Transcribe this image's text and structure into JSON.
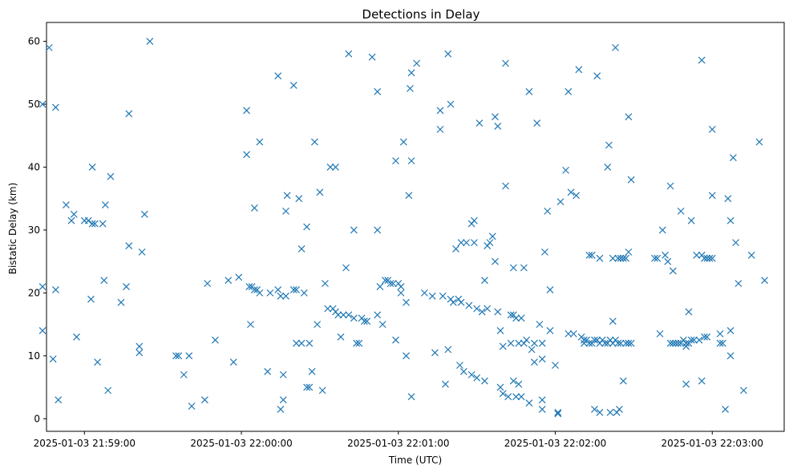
{
  "chart_data": {
    "type": "scatter",
    "title": "Detections in Delay",
    "xlabel": "Time (UTC)",
    "ylabel": "Bistatic Delay (km)",
    "x_format": "seconds after 2025-01-03 21:58:00",
    "xlim": [
      45.5,
      327.5
    ],
    "ylim": [
      -2,
      63
    ],
    "x_ticks": [
      {
        "value": 60,
        "label": "2025-01-03 21:59:00"
      },
      {
        "value": 120,
        "label": "2025-01-03 22:00:00"
      },
      {
        "value": 180,
        "label": "2025-01-03 22:01:00"
      },
      {
        "value": 240,
        "label": "2025-01-03 22:02:00"
      },
      {
        "value": 300,
        "label": "2025-01-03 22:03:00"
      }
    ],
    "y_ticks": [
      0,
      10,
      20,
      30,
      40,
      50,
      60
    ],
    "grid": false,
    "marker": "x",
    "color": "#1f77b4",
    "points": [
      [
        44,
        50
      ],
      [
        44,
        21
      ],
      [
        44,
        14
      ],
      [
        46.5,
        59
      ],
      [
        48,
        9.5
      ],
      [
        49,
        49.5
      ],
      [
        49,
        20.5
      ],
      [
        50,
        3
      ],
      [
        53,
        34
      ],
      [
        55,
        31.5
      ],
      [
        56,
        32.5
      ],
      [
        57,
        13
      ],
      [
        60,
        31.5
      ],
      [
        61.5,
        31.5
      ],
      [
        62.5,
        19
      ],
      [
        63,
        40
      ],
      [
        63,
        31
      ],
      [
        64,
        31
      ],
      [
        65,
        9
      ],
      [
        67,
        31
      ],
      [
        67.5,
        22
      ],
      [
        68,
        34
      ],
      [
        69,
        4.5
      ],
      [
        70,
        38.5
      ],
      [
        74,
        18.5
      ],
      [
        76,
        21
      ],
      [
        77,
        48.5
      ],
      [
        77,
        27.5
      ],
      [
        81,
        11.5
      ],
      [
        81,
        10.5
      ],
      [
        82,
        26.5
      ],
      [
        83,
        32.5
      ],
      [
        85,
        60
      ],
      [
        95,
        10
      ],
      [
        96,
        10
      ],
      [
        98,
        7
      ],
      [
        100,
        10
      ],
      [
        101,
        2
      ],
      [
        106,
        3
      ],
      [
        107,
        21.5
      ],
      [
        110,
        12.5
      ],
      [
        115,
        22
      ],
      [
        117,
        9
      ],
      [
        119,
        22.5
      ],
      [
        122,
        42
      ],
      [
        122,
        49
      ],
      [
        123,
        21
      ],
      [
        123.5,
        15
      ],
      [
        124,
        21
      ],
      [
        125,
        33.5
      ],
      [
        125,
        20.5
      ],
      [
        126,
        20.5
      ],
      [
        127,
        44
      ],
      [
        127,
        20
      ],
      [
        130,
        7.5
      ],
      [
        131,
        20
      ],
      [
        134,
        20.5
      ],
      [
        134,
        54.5
      ],
      [
        135,
        19.5
      ],
      [
        135,
        1.5
      ],
      [
        136,
        3
      ],
      [
        136,
        7
      ],
      [
        137,
        19.5
      ],
      [
        137,
        33
      ],
      [
        137.5,
        35.5
      ],
      [
        140,
        53
      ],
      [
        140,
        20.5
      ],
      [
        141,
        20.5
      ],
      [
        141,
        12
      ],
      [
        142,
        35
      ],
      [
        143,
        27
      ],
      [
        143,
        12
      ],
      [
        144,
        20
      ],
      [
        145,
        5
      ],
      [
        145,
        30.5
      ],
      [
        146,
        5
      ],
      [
        146,
        12
      ],
      [
        147,
        7.5
      ],
      [
        148,
        44
      ],
      [
        149,
        15
      ],
      [
        150,
        36
      ],
      [
        151,
        4.5
      ],
      [
        152,
        21.5
      ],
      [
        153,
        17.5
      ],
      [
        154,
        40
      ],
      [
        155,
        17.5
      ],
      [
        156,
        40
      ],
      [
        156,
        17
      ],
      [
        157,
        16.5
      ],
      [
        158,
        13
      ],
      [
        159,
        16.5
      ],
      [
        160,
        24
      ],
      [
        161,
        16.5
      ],
      [
        161,
        58
      ],
      [
        163,
        30
      ],
      [
        163,
        16
      ],
      [
        164,
        12
      ],
      [
        165,
        12
      ],
      [
        166,
        16
      ],
      [
        167,
        15.5
      ],
      [
        168,
        15.5
      ],
      [
        170,
        57.5
      ],
      [
        172,
        16.5
      ],
      [
        172,
        52
      ],
      [
        172,
        30
      ],
      [
        173,
        21
      ],
      [
        174,
        15
      ],
      [
        175,
        22
      ],
      [
        176,
        22
      ],
      [
        177,
        21.5
      ],
      [
        178,
        21.5
      ],
      [
        179,
        41
      ],
      [
        179,
        12.5
      ],
      [
        180,
        21.5
      ],
      [
        181,
        21
      ],
      [
        181,
        20
      ],
      [
        182,
        44
      ],
      [
        183,
        10
      ],
      [
        183,
        18.5
      ],
      [
        184,
        35.5
      ],
      [
        184.5,
        52.5
      ],
      [
        185,
        55
      ],
      [
        185,
        41
      ],
      [
        185,
        3.5
      ],
      [
        187,
        56.5
      ],
      [
        190,
        20
      ],
      [
        193,
        19.5
      ],
      [
        194,
        10.5
      ],
      [
        196,
        49
      ],
      [
        196,
        46
      ],
      [
        197,
        19.5
      ],
      [
        198,
        5.5
      ],
      [
        199,
        11
      ],
      [
        199,
        58
      ],
      [
        200,
        50
      ],
      [
        200,
        19
      ],
      [
        201,
        18.5
      ],
      [
        202,
        27
      ],
      [
        203,
        19
      ],
      [
        203.5,
        8.5
      ],
      [
        204,
        28
      ],
      [
        204,
        18.5
      ],
      [
        205,
        7.5
      ],
      [
        206,
        28
      ],
      [
        207,
        18
      ],
      [
        208,
        31
      ],
      [
        208,
        7
      ],
      [
        209,
        31.5
      ],
      [
        209,
        28
      ],
      [
        210,
        17.5
      ],
      [
        210,
        6.5
      ],
      [
        211,
        47
      ],
      [
        212,
        17
      ],
      [
        213,
        6
      ],
      [
        213,
        22
      ],
      [
        214,
        27.5
      ],
      [
        214,
        17.5
      ],
      [
        215,
        28
      ],
      [
        216,
        29
      ],
      [
        217,
        48
      ],
      [
        217,
        25
      ],
      [
        218,
        46.5
      ],
      [
        218,
        17
      ],
      [
        219,
        14
      ],
      [
        219,
        5
      ],
      [
        220,
        11.5
      ],
      [
        220,
        4
      ],
      [
        221,
        37
      ],
      [
        221,
        56.5
      ],
      [
        222,
        3.5
      ],
      [
        223,
        16.5
      ],
      [
        223,
        12
      ],
      [
        224,
        24
      ],
      [
        224,
        16.5
      ],
      [
        224,
        6
      ],
      [
        225,
        3.5
      ],
      [
        225,
        16
      ],
      [
        226,
        12
      ],
      [
        226,
        5.5
      ],
      [
        227,
        16
      ],
      [
        227,
        3.5
      ],
      [
        228,
        24
      ],
      [
        228,
        12
      ],
      [
        229,
        12.5
      ],
      [
        230,
        52
      ],
      [
        230,
        2.5
      ],
      [
        231,
        11
      ],
      [
        232,
        12
      ],
      [
        232,
        9
      ],
      [
        233,
        47
      ],
      [
        234,
        15
      ],
      [
        235,
        12
      ],
      [
        235,
        3
      ],
      [
        235,
        9.5
      ],
      [
        235,
        1.5
      ],
      [
        236,
        26.5
      ],
      [
        237,
        33
      ],
      [
        238,
        20.5
      ],
      [
        238,
        14
      ],
      [
        240,
        8.5
      ],
      [
        241,
        1
      ],
      [
        241,
        0.8
      ],
      [
        242,
        34.5
      ],
      [
        244,
        39.5
      ],
      [
        245,
        52
      ],
      [
        245,
        13.5
      ],
      [
        246,
        36
      ],
      [
        247,
        13.5
      ],
      [
        248,
        35.5
      ],
      [
        249,
        55.5
      ],
      [
        250,
        13
      ],
      [
        251,
        12.5
      ],
      [
        251,
        12
      ],
      [
        252,
        12.5
      ],
      [
        253,
        26
      ],
      [
        253,
        12
      ],
      [
        254,
        26
      ],
      [
        254,
        12
      ],
      [
        255,
        12.5
      ],
      [
        255,
        1.5
      ],
      [
        256,
        54.5
      ],
      [
        256,
        12.5
      ],
      [
        257,
        12
      ],
      [
        257,
        25.5
      ],
      [
        257,
        1
      ],
      [
        258,
        12.5
      ],
      [
        259,
        12
      ],
      [
        260,
        40
      ],
      [
        260,
        12
      ],
      [
        260.5,
        43.5
      ],
      [
        261,
        12.5
      ],
      [
        261,
        1
      ],
      [
        262,
        12
      ],
      [
        262,
        25.5
      ],
      [
        262,
        15.5
      ],
      [
        263,
        12.5
      ],
      [
        263,
        59
      ],
      [
        263.5,
        1
      ],
      [
        264,
        12
      ],
      [
        264,
        25.5
      ],
      [
        264.5,
        1.5
      ],
      [
        265,
        25.5
      ],
      [
        265,
        12
      ],
      [
        266,
        6
      ],
      [
        266,
        25.5
      ],
      [
        267,
        12
      ],
      [
        267,
        25.5
      ],
      [
        268,
        12
      ],
      [
        268,
        48
      ],
      [
        268,
        26.5
      ],
      [
        269,
        12
      ],
      [
        269,
        38
      ],
      [
        278,
        25.5
      ],
      [
        279,
        25.5
      ],
      [
        280,
        13.5
      ],
      [
        281,
        30
      ],
      [
        282,
        26
      ],
      [
        283,
        25
      ],
      [
        284,
        37
      ],
      [
        284,
        12
      ],
      [
        285,
        23.5
      ],
      [
        285,
        12
      ],
      [
        286,
        12
      ],
      [
        287,
        12
      ],
      [
        288,
        33
      ],
      [
        288,
        12
      ],
      [
        289,
        12.5
      ],
      [
        290,
        12
      ],
      [
        290,
        5.5
      ],
      [
        290,
        11.5
      ],
      [
        291,
        17
      ],
      [
        291,
        12
      ],
      [
        292,
        31.5
      ],
      [
        292,
        12.5
      ],
      [
        293,
        12.5
      ],
      [
        294,
        26
      ],
      [
        295,
        12.5
      ],
      [
        296,
        26
      ],
      [
        296,
        57
      ],
      [
        296,
        6
      ],
      [
        297,
        25.5
      ],
      [
        297,
        13
      ],
      [
        298,
        25.5
      ],
      [
        298,
        13
      ],
      [
        299,
        25.5
      ],
      [
        300,
        46
      ],
      [
        300,
        25.5
      ],
      [
        300,
        35.5
      ],
      [
        303,
        13.5
      ],
      [
        303,
        12
      ],
      [
        304,
        12
      ],
      [
        305,
        1.5
      ],
      [
        306,
        35
      ],
      [
        307,
        31.5
      ],
      [
        307,
        10
      ],
      [
        307,
        14
      ],
      [
        308,
        41.5
      ],
      [
        309,
        28
      ],
      [
        310,
        21.5
      ],
      [
        312,
        4.5
      ],
      [
        315,
        26
      ],
      [
        318,
        44
      ],
      [
        320,
        22
      ]
    ]
  }
}
